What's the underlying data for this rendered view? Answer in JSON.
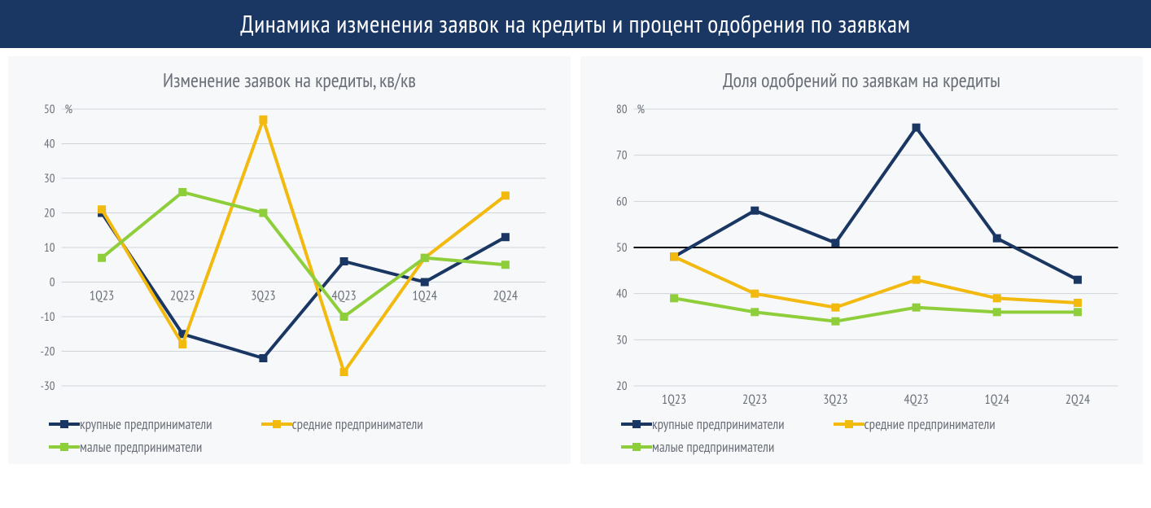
{
  "header": {
    "title": "Динамика изменения заявок на кредиты и процент одобрения по заявкам"
  },
  "colors": {
    "header_bg": "#1a3764",
    "header_text": "#ffffff",
    "panel_bg": "#f7f8fa",
    "text_muted": "#6a6f78",
    "grid": "#cfd3da",
    "series_large": "#1a3764",
    "series_medium": "#f2b90f",
    "series_small": "#8fce3b",
    "ref_line": "#000000"
  },
  "categories": [
    "1Q23",
    "2Q23",
    "3Q23",
    "4Q23",
    "1Q24",
    "2Q24"
  ],
  "left_chart": {
    "type": "line",
    "title": "Изменение заявок на кредиты, кв/кв",
    "y_unit": "%",
    "ylim": [
      -30,
      50
    ],
    "ytick_step": 10,
    "line_width": 4,
    "marker_size": 10,
    "series": [
      {
        "key": "large",
        "label": "крупные предприниматели",
        "color": "#1a3764",
        "values": [
          20,
          -15,
          -22,
          6,
          0,
          13
        ]
      },
      {
        "key": "medium",
        "label": "средние предприниматели",
        "color": "#f2b90f",
        "values": [
          21,
          -18,
          47,
          -26,
          7,
          25
        ]
      },
      {
        "key": "small",
        "label": "малые предприниматели",
        "color": "#8fce3b",
        "values": [
          7,
          26,
          20,
          -10,
          7,
          5
        ]
      }
    ]
  },
  "right_chart": {
    "type": "line",
    "title": "Доля одобрений по заявкам на кредиты",
    "y_unit": "%",
    "ylim": [
      20,
      80
    ],
    "ytick_step": 10,
    "line_width": 4,
    "marker_size": 10,
    "ref_line": 50,
    "series": [
      {
        "key": "large",
        "label": "крупные предприниматели",
        "color": "#1a3764",
        "values": [
          48,
          58,
          51,
          76,
          52,
          43
        ]
      },
      {
        "key": "medium",
        "label": "средние предприниматели",
        "color": "#f2b90f",
        "values": [
          48,
          40,
          37,
          43,
          39,
          38
        ]
      },
      {
        "key": "small",
        "label": "малые предприниматели",
        "color": "#8fce3b",
        "values": [
          39,
          36,
          34,
          37,
          36,
          36
        ]
      }
    ]
  }
}
